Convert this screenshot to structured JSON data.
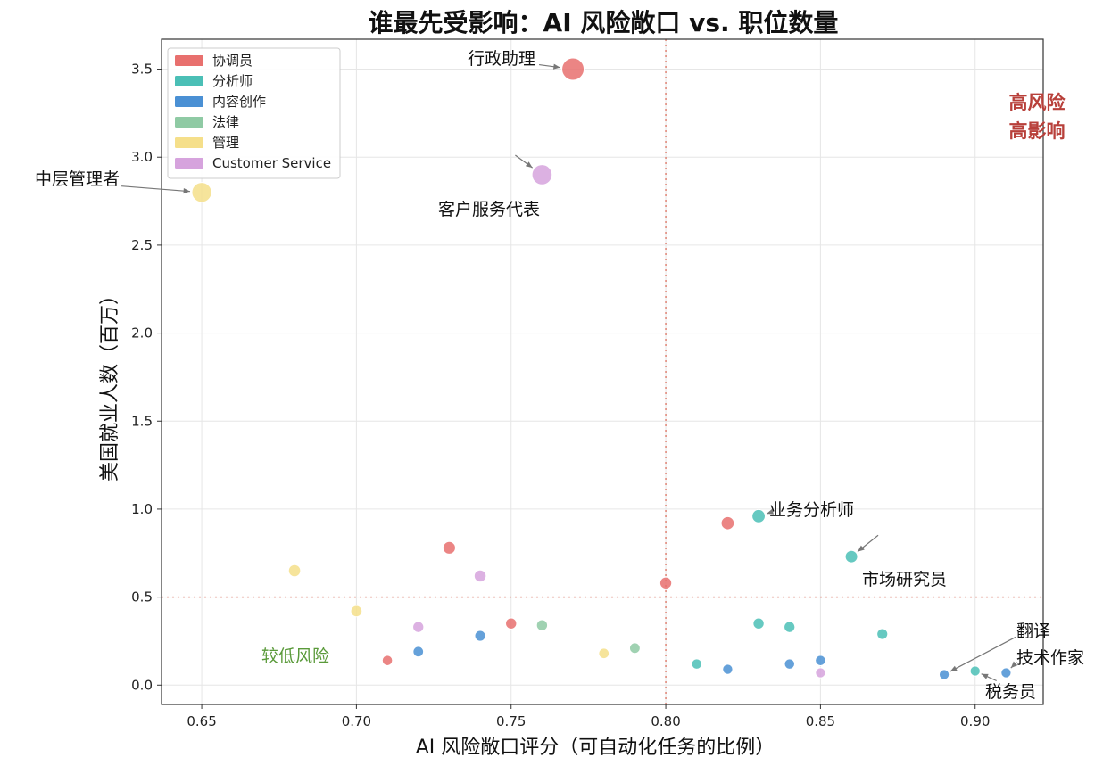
{
  "chart_data": {
    "type": "scatter",
    "title": "谁最先受影响：AI 风险敞口 vs. 职位数量",
    "xlabel": "AI 风险敞口评分（可自动化任务的比例）",
    "ylabel": "美国就业人数（百万）",
    "xlim": [
      0.637,
      0.922
    ],
    "ylim": [
      -0.11,
      3.67
    ],
    "x_ticks": [
      "0.65",
      "0.70",
      "0.75",
      "0.80",
      "0.85",
      "0.90"
    ],
    "y_ticks": [
      "0.0",
      "0.5",
      "1.0",
      "1.5",
      "2.0",
      "2.5",
      "3.0",
      "3.5"
    ],
    "grid": true,
    "legend_position": "top-left",
    "threshold_x": 0.8,
    "threshold_y": 0.5,
    "threshold_color": "#e08a7c",
    "series": [
      {
        "name": "协调员",
        "color": "#e8706e",
        "points": [
          {
            "x": 0.77,
            "y": 3.5,
            "label": "行政助理"
          },
          {
            "x": 0.82,
            "y": 0.92
          },
          {
            "x": 0.73,
            "y": 0.78
          },
          {
            "x": 0.8,
            "y": 0.58
          },
          {
            "x": 0.75,
            "y": 0.35
          },
          {
            "x": 0.71,
            "y": 0.14
          }
        ]
      },
      {
        "name": "分析师",
        "color": "#4bbfb6",
        "points": [
          {
            "x": 0.83,
            "y": 0.96,
            "label": "业务分析师"
          },
          {
            "x": 0.86,
            "y": 0.73,
            "label": "市场研究员"
          },
          {
            "x": 0.83,
            "y": 0.35
          },
          {
            "x": 0.84,
            "y": 0.33
          },
          {
            "x": 0.87,
            "y": 0.29
          },
          {
            "x": 0.81,
            "y": 0.12
          },
          {
            "x": 0.9,
            "y": 0.08,
            "label": "税务员"
          }
        ]
      },
      {
        "name": "内容创作",
        "color": "#4a90d4",
        "points": [
          {
            "x": 0.74,
            "y": 0.28
          },
          {
            "x": 0.72,
            "y": 0.19
          },
          {
            "x": 0.85,
            "y": 0.14
          },
          {
            "x": 0.84,
            "y": 0.12
          },
          {
            "x": 0.82,
            "y": 0.09
          },
          {
            "x": 0.89,
            "y": 0.06,
            "label": "翻译"
          },
          {
            "x": 0.91,
            "y": 0.07,
            "label": "技术作家"
          }
        ]
      },
      {
        "name": "法律",
        "color": "#8fcaa4",
        "points": [
          {
            "x": 0.76,
            "y": 0.34
          },
          {
            "x": 0.79,
            "y": 0.21
          }
        ]
      },
      {
        "name": "管理",
        "color": "#f5df8a",
        "points": [
          {
            "x": 0.65,
            "y": 2.8,
            "label": "中层管理者"
          },
          {
            "x": 0.68,
            "y": 0.65
          },
          {
            "x": 0.7,
            "y": 0.42
          },
          {
            "x": 0.78,
            "y": 0.18
          }
        ]
      },
      {
        "name": "Customer Service",
        "color": "#d6a3dd",
        "points": [
          {
            "x": 0.76,
            "y": 2.9,
            "label": "客户服务代表"
          },
          {
            "x": 0.74,
            "y": 0.62
          },
          {
            "x": 0.72,
            "y": 0.33
          },
          {
            "x": 0.85,
            "y": 0.07
          }
        ]
      }
    ],
    "annotations": {
      "high_risk_line1": "高风险",
      "high_risk_line2": "高影响",
      "low_risk": "较低风险"
    }
  }
}
